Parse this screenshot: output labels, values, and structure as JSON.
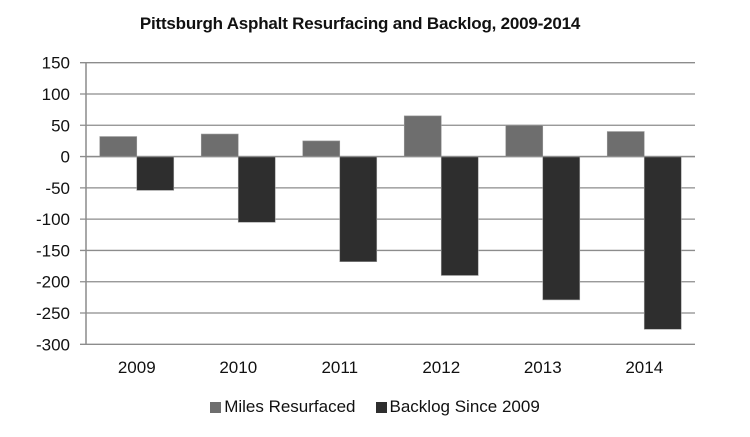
{
  "chart_data": {
    "type": "bar",
    "title": "Pittsburgh Asphalt Resurfacing and Backlog, 2009-2014",
    "xlabel": "",
    "ylabel": "",
    "categories": [
      "2009",
      "2010",
      "2011",
      "2012",
      "2013",
      "2014"
    ],
    "series": [
      {
        "name": "Miles Resurfaced",
        "color": "#6e6e6e",
        "values": [
          32,
          36,
          25,
          65,
          50,
          40
        ]
      },
      {
        "name": "Backlog Since 2009",
        "color": "#2e2e2e",
        "values": [
          -54,
          -105,
          -168,
          -190,
          -229,
          -276
        ]
      }
    ],
    "ylim": [
      -300,
      150
    ],
    "yticks": [
      150,
      100,
      50,
      0,
      -50,
      -100,
      -150,
      -200,
      -250,
      -300
    ],
    "grid": true,
    "legend_position": "bottom"
  }
}
